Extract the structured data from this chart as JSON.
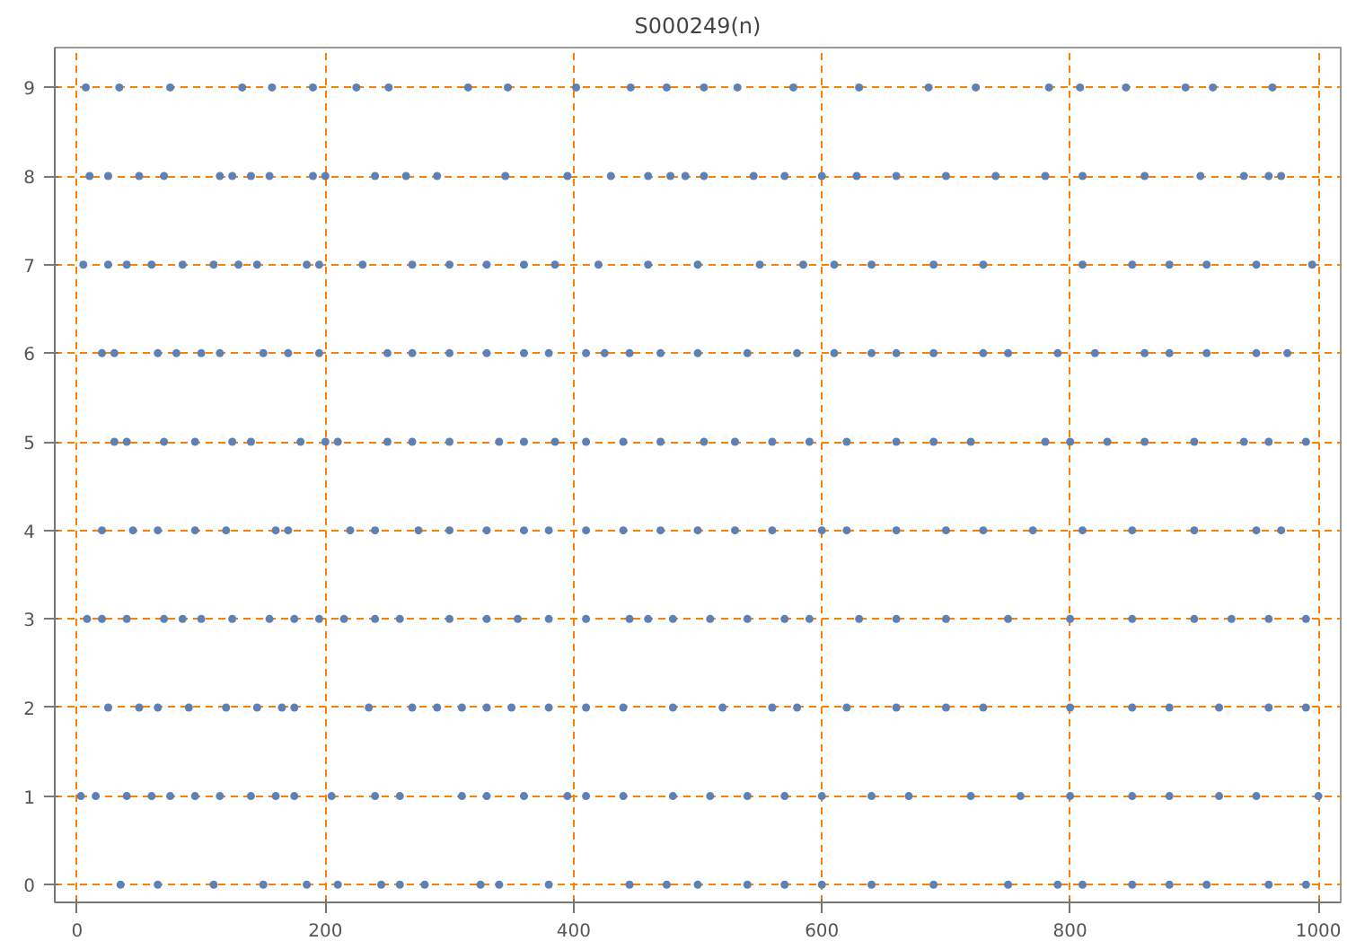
{
  "chart_data": {
    "type": "scatter",
    "title": "S000249(n)",
    "color": "#5e81b5",
    "marker": "circle",
    "grid": true,
    "xlim": [
      -18,
      1018
    ],
    "ylim": [
      -0.2,
      9.45
    ],
    "xticks": [
      0,
      200,
      400,
      600,
      800,
      1000
    ],
    "yticks": [
      0,
      1,
      2,
      3,
      4,
      5,
      6,
      7,
      8,
      9
    ],
    "x": [
      7,
      34,
      75,
      133,
      157,
      190,
      225,
      251,
      315,
      347,
      402,
      446,
      475,
      505,
      532,
      577,
      630,
      686,
      724,
      783,
      808,
      845,
      893,
      915,
      963,
      10,
      25,
      50,
      70,
      115,
      125,
      140,
      155,
      190,
      200,
      240,
      265,
      290,
      345,
      395,
      430,
      460,
      478,
      490,
      505,
      545,
      570,
      600,
      628,
      660,
      700,
      740,
      780,
      810,
      860,
      905,
      940,
      960,
      970,
      5,
      25,
      40,
      60,
      85,
      110,
      130,
      145,
      185,
      195,
      230,
      270,
      300,
      330,
      360,
      385,
      420,
      460,
      500,
      550,
      585,
      610,
      640,
      690,
      730,
      810,
      850,
      880,
      910,
      950,
      995,
      20,
      30,
      65,
      80,
      100,
      115,
      150,
      170,
      195,
      250,
      270,
      300,
      330,
      360,
      380,
      410,
      425,
      445,
      470,
      500,
      540,
      580,
      610,
      640,
      660,
      690,
      730,
      750,
      790,
      820,
      860,
      880,
      910,
      950,
      975,
      30,
      40,
      70,
      95,
      125,
      140,
      180,
      200,
      210,
      250,
      270,
      300,
      340,
      360,
      385,
      410,
      440,
      470,
      505,
      530,
      560,
      590,
      620,
      660,
      690,
      720,
      780,
      800,
      830,
      860,
      900,
      940,
      960,
      990,
      20,
      45,
      65,
      95,
      120,
      160,
      170,
      220,
      240,
      275,
      300,
      330,
      360,
      380,
      410,
      440,
      470,
      500,
      530,
      560,
      600,
      620,
      660,
      700,
      730,
      770,
      810,
      850,
      900,
      950,
      970,
      8,
      20,
      40,
      70,
      85,
      100,
      125,
      155,
      175,
      195,
      215,
      240,
      260,
      300,
      330,
      355,
      380,
      410,
      445,
      460,
      480,
      510,
      540,
      570,
      590,
      630,
      660,
      700,
      750,
      800,
      850,
      900,
      930,
      960,
      990,
      25,
      50,
      65,
      90,
      120,
      145,
      165,
      175,
      235,
      270,
      290,
      310,
      330,
      350,
      380,
      410,
      440,
      480,
      520,
      560,
      580,
      620,
      660,
      700,
      730,
      800,
      850,
      880,
      920,
      960,
      990,
      3,
      15,
      40,
      60,
      75,
      95,
      115,
      140,
      160,
      175,
      205,
      240,
      260,
      310,
      330,
      360,
      395,
      410,
      440,
      480,
      510,
      540,
      570,
      600,
      640,
      670,
      720,
      760,
      800,
      850,
      880,
      920,
      950,
      1000,
      35,
      65,
      110,
      150,
      185,
      210,
      245,
      260,
      280,
      325,
      340,
      380,
      445,
      475,
      500,
      540,
      570,
      600,
      640,
      690,
      750,
      790,
      810,
      850,
      880,
      910,
      960,
      990
    ],
    "values": [
      9,
      9,
      9,
      9,
      9,
      9,
      9,
      9,
      9,
      9,
      9,
      9,
      9,
      9,
      9,
      9,
      9,
      9,
      9,
      9,
      9,
      9,
      9,
      9,
      9,
      8,
      8,
      8,
      8,
      8,
      8,
      8,
      8,
      8,
      8,
      8,
      8,
      8,
      8,
      8,
      8,
      8,
      8,
      8,
      8,
      8,
      8,
      8,
      8,
      8,
      8,
      8,
      8,
      8,
      8,
      8,
      8,
      8,
      8,
      7,
      7,
      7,
      7,
      7,
      7,
      7,
      7,
      7,
      7,
      7,
      7,
      7,
      7,
      7,
      7,
      7,
      7,
      7,
      7,
      7,
      7,
      7,
      7,
      7,
      7,
      7,
      7,
      7,
      7,
      7,
      6,
      6,
      6,
      6,
      6,
      6,
      6,
      6,
      6,
      6,
      6,
      6,
      6,
      6,
      6,
      6,
      6,
      6,
      6,
      6,
      6,
      6,
      6,
      6,
      6,
      6,
      6,
      6,
      6,
      6,
      6,
      6,
      6,
      6,
      6,
      5,
      5,
      5,
      5,
      5,
      5,
      5,
      5,
      5,
      5,
      5,
      5,
      5,
      5,
      5,
      5,
      5,
      5,
      5,
      5,
      5,
      5,
      5,
      5,
      5,
      5,
      5,
      5,
      5,
      5,
      5,
      5,
      5,
      5,
      4,
      4,
      4,
      4,
      4,
      4,
      4,
      4,
      4,
      4,
      4,
      4,
      4,
      4,
      4,
      4,
      4,
      4,
      4,
      4,
      4,
      4,
      4,
      4,
      4,
      4,
      4,
      4,
      4,
      4,
      4,
      3,
      3,
      3,
      3,
      3,
      3,
      3,
      3,
      3,
      3,
      3,
      3,
      3,
      3,
      3,
      3,
      3,
      3,
      3,
      3,
      3,
      3,
      3,
      3,
      3,
      3,
      3,
      3,
      3,
      3,
      3,
      3,
      3,
      3,
      3,
      2,
      2,
      2,
      2,
      2,
      2,
      2,
      2,
      2,
      2,
      2,
      2,
      2,
      2,
      2,
      2,
      2,
      2,
      2,
      2,
      2,
      2,
      2,
      2,
      2,
      2,
      2,
      2,
      2,
      2,
      2,
      1,
      1,
      1,
      1,
      1,
      1,
      1,
      1,
      1,
      1,
      1,
      1,
      1,
      1,
      1,
      1,
      1,
      1,
      1,
      1,
      1,
      1,
      1,
      1,
      1,
      1,
      1,
      1,
      1,
      1,
      1,
      1,
      1,
      1,
      0,
      0,
      0,
      0,
      0,
      0,
      0,
      0,
      0,
      0,
      0,
      0,
      0,
      0,
      0,
      0,
      0,
      0,
      0,
      0,
      0,
      0,
      0,
      0,
      0,
      0,
      0,
      0
    ]
  }
}
